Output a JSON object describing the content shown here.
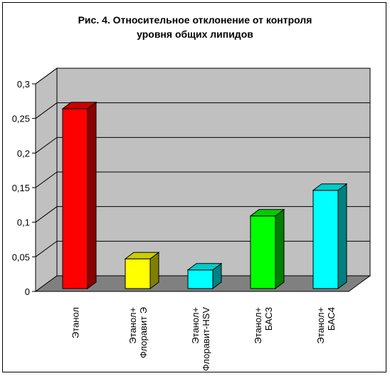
{
  "chart_data": {
    "type": "bar",
    "title_lines": [
      "Рис. 4. Относительное отклонение от контроля",
      "уровня общих липидов"
    ],
    "categories": [
      [
        "Этанол"
      ],
      [
        "Этанол+",
        "Флоравит Э"
      ],
      [
        "Этанол+",
        "Флоравит-HSV"
      ],
      [
        "Этанол+",
        "БАС3"
      ],
      [
        "Этанол+",
        "БАС4"
      ]
    ],
    "values": [
      0.26,
      0.043,
      0.027,
      0.105,
      0.142
    ],
    "y_ticks": [
      "0",
      "0,05",
      "0,1",
      "0,15",
      "0,2",
      "0,25",
      "0,3"
    ],
    "ylim": [
      0,
      0.3
    ],
    "grid": true,
    "legend": false,
    "colors": {
      "bars": [
        {
          "front": "#ff0000",
          "side": "#8b0000",
          "top": "#cc0000"
        },
        {
          "front": "#ffff00",
          "side": "#808000",
          "top": "#cccc00"
        },
        {
          "front": "#00ffff",
          "side": "#008080",
          "top": "#00cccc"
        },
        {
          "front": "#00ff00",
          "side": "#008000",
          "top": "#00cc00"
        },
        {
          "front": "#00ffff",
          "side": "#008080",
          "top": "#00cccc"
        }
      ],
      "wall": "#c0c0c0",
      "side_wall": "#c0c0c0",
      "floor": "#808080",
      "gridline": "#000000"
    }
  }
}
